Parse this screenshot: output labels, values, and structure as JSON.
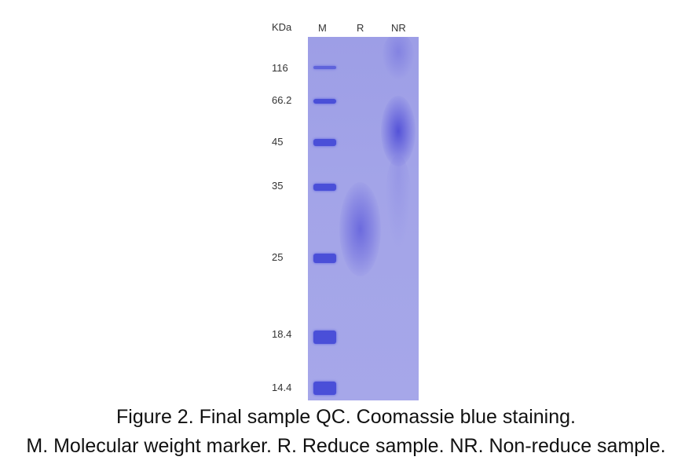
{
  "gel": {
    "unit_label": "KDa",
    "lanes": [
      "M",
      "R",
      "NR"
    ],
    "marker_weights": [
      "116",
      "66.2",
      "45",
      "35",
      "25",
      "18.4",
      "14.4"
    ]
  },
  "caption": {
    "line1": "Figure 2. Final sample QC. Coomassie blue staining.",
    "line2": "M. Molecular weight marker. R. Reduce sample. NR. Non-reduce sample."
  },
  "colors": {
    "gel_background": "#a3a4e8",
    "band": "#4a4fd8"
  }
}
